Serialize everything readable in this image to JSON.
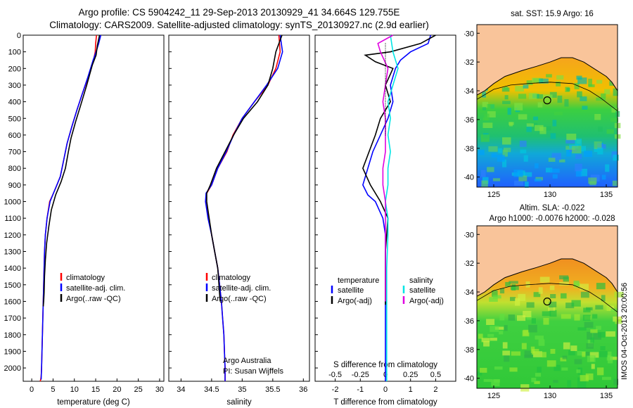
{
  "header": {
    "title_line1": "Argo profile: CS 5904242_11 29-Sep-2013 20130929_41 34.664S 129.755E",
    "title_line2": "Climatology: CARS2009. Satellite-adjusted climatology: synTS_20130927.nc (2.9d earlier)"
  },
  "colors": {
    "red": "#ff0000",
    "blue": "#0000ff",
    "black": "#000000",
    "cyan": "#00e5e5",
    "magenta": "#e000e0",
    "land": "#f9c49a"
  },
  "chart_data": [
    {
      "type": "line",
      "xlabel": "temperature (deg C)",
      "ylabel": "",
      "xlim": [
        -2,
        31
      ],
      "ylim": [
        2080,
        0
      ],
      "xticks": [
        0,
        5,
        10,
        15,
        20,
        25,
        30
      ],
      "yticks": [
        0,
        100,
        200,
        300,
        400,
        500,
        600,
        700,
        800,
        900,
        1000,
        1100,
        1200,
        1300,
        1400,
        1500,
        1600,
        1700,
        1800,
        1900,
        2000
      ],
      "legend_position": "lower-middle",
      "series": [
        {
          "name": "climatology",
          "color": "#ff0000",
          "x": [
            15.2,
            15.0,
            14.9,
            14.5,
            13.3,
            11.9,
            10.6,
            9.4,
            8.3,
            7.5,
            6.7,
            5.9,
            5.1,
            4.2,
            3.6,
            3.2,
            3.0,
            2.9,
            2.8,
            2.7,
            2.6,
            2.5,
            2.4,
            2.3,
            2.25,
            2.2,
            2.15,
            2.1,
            2.05,
            2.0
          ],
          "y": [
            0,
            50,
            100,
            150,
            250,
            350,
            450,
            550,
            650,
            750,
            850,
            900,
            950,
            1000,
            1100,
            1200,
            1300,
            1400,
            1500,
            1600,
            1700,
            1800,
            1900,
            2000,
            2030,
            2050,
            2060,
            2070,
            2075,
            2080
          ]
        },
        {
          "name": "satellite-adj. clim.",
          "color": "#0000ff",
          "x": [
            16.2,
            15.7,
            15.1,
            14.4,
            13.2,
            11.9,
            10.6,
            9.4,
            8.3,
            7.5,
            6.7,
            5.9,
            5.1,
            4.3,
            3.6,
            3.2,
            3.0,
            2.9,
            2.8,
            2.7,
            2.6,
            2.5,
            2.4,
            2.3,
            2.2
          ],
          "y": [
            0,
            50,
            100,
            150,
            250,
            350,
            450,
            550,
            650,
            750,
            850,
            900,
            950,
            1000,
            1100,
            1200,
            1300,
            1400,
            1500,
            1600,
            1700,
            1800,
            1900,
            2000,
            2070
          ]
        },
        {
          "name": "Argo(..raw -QC)",
          "color": "#000000",
          "x": [
            15.9,
            15.4,
            15.1,
            14.2,
            12.9,
            11.5,
            10.3,
            9.2,
            8.6,
            7.9,
            6.9,
            5.6,
            4.6,
            4.0,
            3.5,
            3.2,
            3.0,
            2.9,
            2.8,
            2.7
          ],
          "y": [
            0,
            60,
            120,
            180,
            300,
            420,
            520,
            620,
            700,
            800,
            880,
            960,
            1050,
            1150,
            1250,
            1350,
            1450,
            1550,
            1600,
            1630
          ]
        }
      ]
    },
    {
      "type": "line",
      "xlabel": "salinity",
      "ylabel": "",
      "xlim": [
        33.8,
        36.1
      ],
      "ylim": [
        2080,
        0
      ],
      "xticks": [
        34,
        34.5,
        35,
        35.5,
        36
      ],
      "legend_position": "lower-middle",
      "annotation": [
        "Argo Australia",
        "PI: Susan Wijffels"
      ],
      "series": [
        {
          "name": "climatology",
          "color": "#ff0000",
          "x": [
            35.6,
            35.62,
            35.55,
            35.42,
            35.2,
            35.0,
            34.85,
            34.75,
            34.6,
            34.5,
            34.42,
            34.4,
            34.45,
            34.5,
            34.55,
            34.6,
            34.63,
            34.66,
            34.68,
            34.7,
            34.71,
            34.72,
            34.72
          ],
          "y": [
            0,
            100,
            200,
            300,
            400,
            500,
            600,
            700,
            800,
            900,
            950,
            1000,
            1100,
            1200,
            1300,
            1400,
            1500,
            1600,
            1700,
            1800,
            1900,
            2000,
            2080
          ]
        },
        {
          "name": "satellite-adj. clim.",
          "color": "#0000ff",
          "x": [
            35.62,
            35.66,
            35.58,
            35.4,
            35.2,
            35.0,
            34.86,
            34.74,
            34.6,
            34.5,
            34.41,
            34.4,
            34.44,
            34.5,
            34.55,
            34.6,
            34.63,
            34.66,
            34.68,
            34.7,
            34.71,
            34.72,
            34.72
          ],
          "y": [
            0,
            100,
            200,
            300,
            400,
            500,
            600,
            700,
            800,
            900,
            950,
            1000,
            1100,
            1200,
            1300,
            1400,
            1500,
            1600,
            1700,
            1800,
            1900,
            2000,
            2080
          ]
        },
        {
          "name": "Argo(..raw -QC)",
          "color": "#000000",
          "x": [
            35.65,
            35.55,
            35.5,
            35.42,
            35.25,
            35.02,
            34.86,
            34.72,
            34.58,
            34.48,
            34.42,
            34.42,
            34.46,
            34.5,
            34.55,
            34.6,
            34.62,
            34.64
          ],
          "y": [
            0,
            100,
            200,
            300,
            400,
            500,
            600,
            700,
            800,
            900,
            950,
            1000,
            1100,
            1200,
            1300,
            1400,
            1500,
            1600
          ]
        }
      ]
    },
    {
      "type": "line",
      "xlabel": "T difference from climatology",
      "xlabel2": "S difference from climatology",
      "ylabel": "",
      "xlim": [
        -2.8,
        2.8
      ],
      "ylim": [
        2080,
        0
      ],
      "xticks": [
        -2,
        -1,
        0,
        1,
        2
      ],
      "xticks2": [
        -0.5,
        -0.25,
        0,
        0.25,
        0.5
      ],
      "xticks2_labels": [
        "-0.5",
        "-0.25",
        "0",
        "0.25",
        "0.5"
      ],
      "legend_position": "lower-middle",
      "legend_groups": [
        "temperature",
        "salinity"
      ],
      "series": [
        {
          "name": "satellite",
          "group": "temperature",
          "color": "#0000ff",
          "x": [
            1.8,
            1.7,
            1.0,
            0.6,
            0.4,
            0.2,
            0.3,
            0.1,
            -0.2,
            -0.5,
            -0.7,
            -0.9,
            -0.7,
            -0.4,
            -0.1,
            0.0,
            0.0,
            0.0,
            0.0,
            0.0,
            0.0
          ],
          "y": [
            0,
            50,
            100,
            150,
            200,
            300,
            400,
            500,
            600,
            700,
            800,
            900,
            960,
            1000,
            1100,
            1200,
            1400,
            1600,
            1800,
            2000,
            2080
          ]
        },
        {
          "name": "Argo(-adj)",
          "group": "temperature",
          "color": "#000000",
          "x": [
            2.0,
            1.4,
            0.2,
            -0.8,
            -0.4,
            0.3,
            0.0,
            0.2,
            -0.2,
            -0.4,
            -0.9,
            -0.6,
            -0.2,
            0.1,
            0.0,
            0.0,
            0.0
          ],
          "y": [
            0,
            50,
            100,
            120,
            160,
            200,
            300,
            400,
            500,
            600,
            800,
            900,
            1000,
            1100,
            1300,
            1500,
            1620
          ]
        },
        {
          "name": "satellite",
          "group": "salinity",
          "color": "#00e5e5",
          "x": [
            0.2,
            0.3,
            0.5,
            0.3,
            0.1,
            0.2,
            0.1,
            0.2,
            0.1,
            0.1,
            0.0,
            0.1,
            0.1,
            0.05,
            0.05,
            0.05
          ],
          "y": [
            0,
            100,
            200,
            300,
            400,
            500,
            600,
            700,
            800,
            900,
            1000,
            1100,
            1200,
            1400,
            1700,
            2080
          ]
        },
        {
          "name": "Argo(-adj)",
          "group": "salinity",
          "color": "#e000e0",
          "x": [
            0.3,
            -0.3,
            -0.2,
            0.1,
            0.0,
            -0.1,
            0.0,
            0.0,
            0.0,
            -0.1,
            -0.1,
            0.0,
            0.0,
            0.0
          ],
          "y": [
            0,
            50,
            100,
            200,
            300,
            400,
            500,
            600,
            700,
            800,
            900,
            1000,
            1300,
            1600
          ]
        }
      ]
    }
  ],
  "maps": [
    {
      "title": "sat. SST: 15.9 Argo: 16",
      "title_line2": "",
      "xticks": [
        "125",
        "130",
        "135"
      ],
      "yticks": [
        "-30",
        "-32",
        "-34",
        "-36",
        "-38",
        "-40"
      ],
      "xlim": [
        123.5,
        136
      ],
      "ylim": [
        -40.7,
        -29.4
      ],
      "marker": {
        "lon": 129.755,
        "lat": -34.664
      }
    },
    {
      "title": "Altim. SLA: -0.022",
      "title_line2": "Argo h1000: -0.0076 h2000: -0.028",
      "xticks": [
        "125",
        "130",
        "135"
      ],
      "yticks": [
        "-30",
        "-32",
        "-34",
        "-36",
        "-38",
        "-40"
      ],
      "xlim": [
        123.5,
        136
      ],
      "ylim": [
        -40.7,
        -29.4
      ],
      "marker": {
        "lon": 129.755,
        "lat": -34.664
      }
    }
  ],
  "footer": {
    "side_label": "IMOS 04-Oct-2013 20:00:56"
  }
}
